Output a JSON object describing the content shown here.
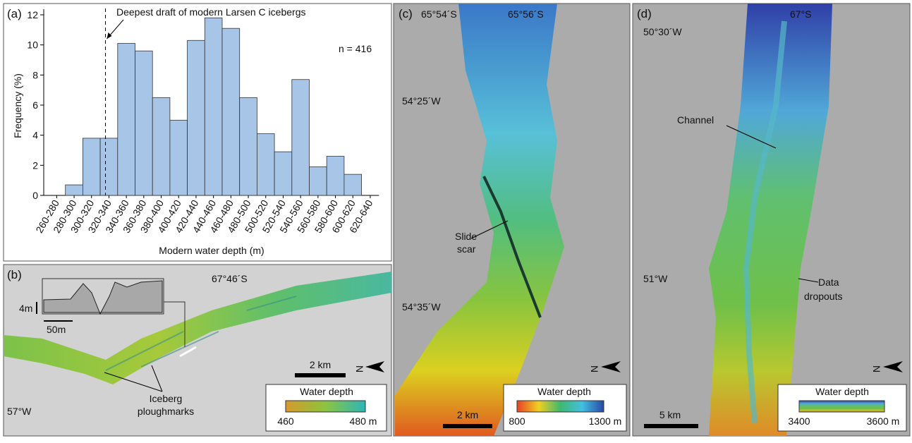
{
  "chart_data": {
    "type": "bar",
    "panel_label": "(a)",
    "annotation": "Deepest draft of modern Larsen C icebergs",
    "n_label": "n = 416",
    "xlabel": "Modern water depth (m)",
    "ylabel": "Frequency (%)",
    "categories": [
      "260-280",
      "280-300",
      "300-320",
      "320-340",
      "340-360",
      "360-380",
      "380-400",
      "400-420",
      "420-440",
      "440-460",
      "460-480",
      "480-500",
      "500-520",
      "520-540",
      "540-560",
      "560-580",
      "580-600",
      "600-620",
      "620-640"
    ],
    "values": [
      0,
      0.7,
      3.8,
      3.8,
      10.1,
      9.6,
      6.5,
      5.0,
      10.3,
      11.8,
      11.1,
      6.5,
      4.1,
      2.9,
      7.7,
      1.9,
      2.6,
      1.4,
      0
    ],
    "color": "#a7c5e6",
    "ylim": [
      0,
      12
    ],
    "yticks": [
      0,
      2,
      4,
      6,
      8,
      10,
      12
    ]
  },
  "panels": {
    "b": {
      "label": "(b)",
      "lat": "67°46´S",
      "lon": "57°W",
      "profile_height": "4m",
      "profile_width": "50m",
      "scale": "2 km",
      "note": [
        "Iceberg",
        "ploughmarks"
      ],
      "legend_title": "Water depth",
      "legend_min": "460",
      "legend_max": "480 m",
      "north": "N"
    },
    "c": {
      "label": "(c)",
      "lat1": "65°54´S",
      "lat2": "65°56´S",
      "lon1": "54°25´W",
      "lon2": "54°35´W",
      "note": [
        "Slide",
        "scar"
      ],
      "scale": "2 km",
      "legend_title": "Water depth",
      "legend_min": "800",
      "legend_max": "1300 m",
      "north": "N"
    },
    "d": {
      "label": "(d)",
      "lon1": "50°30´W",
      "lat": "67°S",
      "lon2": "51°W",
      "note1": "Channel",
      "note2": [
        "Data",
        "dropouts"
      ],
      "scale": "5 km",
      "legend_title": "Water depth",
      "legend_min": "3400",
      "legend_max": "3600 m",
      "north": "N"
    }
  }
}
